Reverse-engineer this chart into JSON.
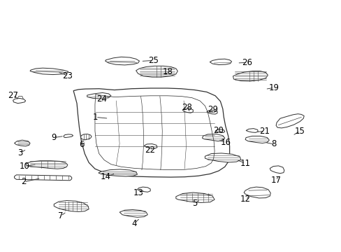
{
  "background_color": "#ffffff",
  "line_color": "#333333",
  "label_color": "#000000",
  "label_fontsize": 8.5,
  "parts": {
    "1": {
      "shape": "floor_main"
    },
    "2": {
      "shape": "long_bar"
    },
    "3": {
      "shape": "small_bracket_left"
    },
    "4": {
      "shape": "bottom_bracket"
    },
    "5": {
      "shape": "ribbed_bracket_br"
    },
    "6": {
      "shape": "small_vert"
    },
    "7": {
      "shape": "foot_bracket"
    },
    "8": {
      "shape": "block_br"
    },
    "9": {
      "shape": "tiny_hook"
    },
    "10": {
      "shape": "complex_bracket"
    },
    "11": {
      "shape": "channel_br"
    },
    "12": {
      "shape": "l_bracket"
    },
    "13": {
      "shape": "small_sq"
    },
    "14": {
      "shape": "long_diagonal"
    },
    "15": {
      "shape": "long_curve"
    },
    "16": {
      "shape": "block_sm"
    },
    "17": {
      "shape": "narrow_rect"
    },
    "18": {
      "shape": "box_ribbed"
    },
    "19": {
      "shape": "box_large"
    },
    "20": {
      "shape": "tiny_hook2"
    },
    "21": {
      "shape": "tiny_hook3"
    },
    "22": {
      "shape": "small_sq2"
    },
    "23": {
      "shape": "wing_left"
    },
    "24": {
      "shape": "wing_mid"
    },
    "25": {
      "shape": "wing_top"
    },
    "26": {
      "shape": "small_part"
    },
    "27": {
      "shape": "small_mount"
    },
    "28": {
      "shape": "tiny_part"
    },
    "29": {
      "shape": "tiny_part2"
    }
  },
  "labels": {
    "1": [
      0.285,
      0.535,
      0.315,
      0.53
    ],
    "2": [
      0.083,
      0.28,
      0.13,
      0.283
    ],
    "3": [
      0.068,
      0.39,
      0.09,
      0.41
    ],
    "4": [
      0.395,
      0.115,
      0.415,
      0.135
    ],
    "5": [
      0.575,
      0.195,
      0.59,
      0.205
    ],
    "6": [
      0.242,
      0.425,
      0.258,
      0.43
    ],
    "7": [
      0.18,
      0.145,
      0.205,
      0.16
    ],
    "8": [
      0.8,
      0.43,
      0.772,
      0.435
    ],
    "9": [
      0.162,
      0.453,
      0.192,
      0.455
    ],
    "10": [
      0.078,
      0.34,
      0.118,
      0.34
    ],
    "11": [
      0.718,
      0.355,
      0.692,
      0.358
    ],
    "12": [
      0.718,
      0.208,
      0.73,
      0.216
    ],
    "13": [
      0.408,
      0.235,
      0.428,
      0.238
    ],
    "14": [
      0.315,
      0.3,
      0.34,
      0.308
    ],
    "15": [
      0.878,
      0.477,
      0.856,
      0.462
    ],
    "16": [
      0.658,
      0.438,
      0.638,
      0.44
    ],
    "17": [
      0.808,
      0.285,
      0.816,
      0.304
    ],
    "18": [
      0.488,
      0.712,
      0.482,
      0.695
    ],
    "19": [
      0.802,
      0.65,
      0.776,
      0.646
    ],
    "20": [
      0.638,
      0.48,
      0.648,
      0.472
    ],
    "21": [
      0.772,
      0.478,
      0.748,
      0.474
    ],
    "22": [
      0.438,
      0.402,
      0.448,
      0.414
    ],
    "23": [
      0.198,
      0.698,
      0.178,
      0.712
    ],
    "24": [
      0.298,
      0.608,
      0.302,
      0.592
    ],
    "25": [
      0.448,
      0.758,
      0.418,
      0.756
    ],
    "26": [
      0.722,
      0.75,
      0.695,
      0.748
    ],
    "27": [
      0.038,
      0.622,
      0.056,
      0.598
    ],
    "28": [
      0.548,
      0.572,
      0.558,
      0.555
    ],
    "29": [
      0.62,
      0.562,
      0.622,
      0.548
    ]
  }
}
